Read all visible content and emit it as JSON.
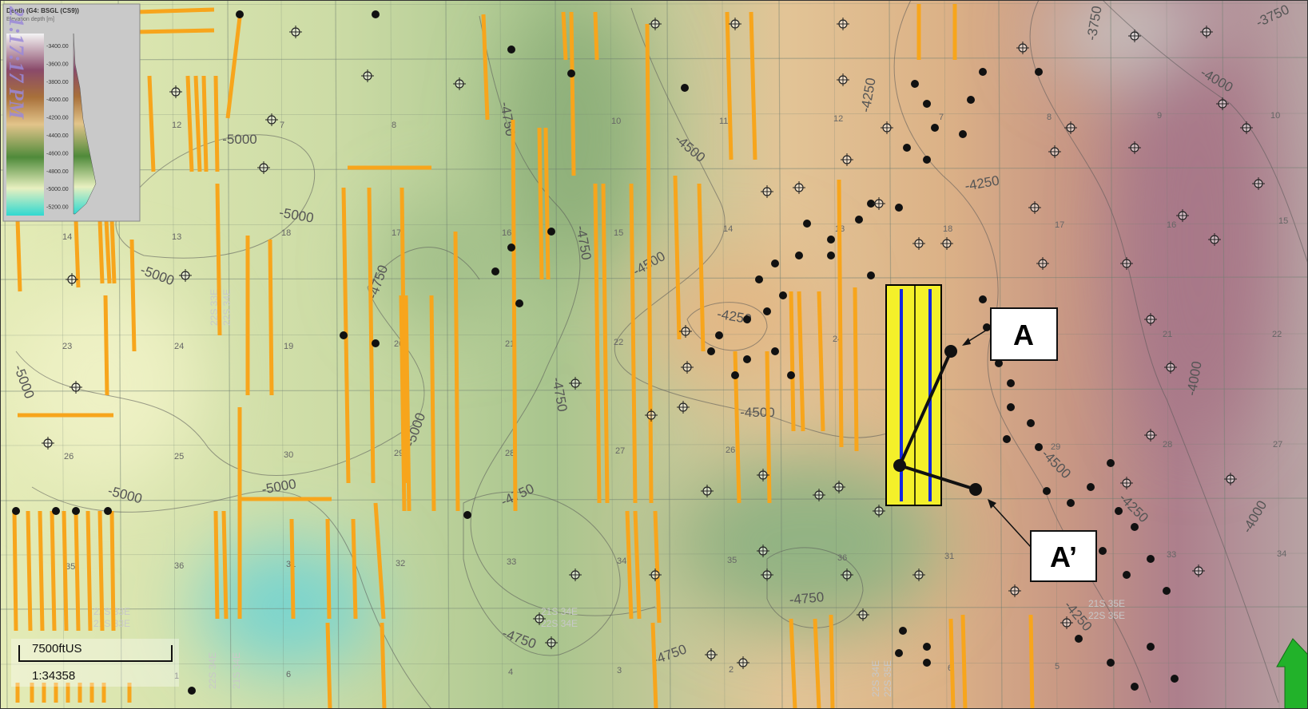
{
  "legend": {
    "title": "Depth (G4: BSGL (CS9))",
    "subtitle": "Elevation depth [m]",
    "ticks": [
      "-3400.00",
      "-3600.00",
      "-3800.00",
      "-4000.00",
      "-4200.00",
      "-4400.00",
      "-4600.00",
      "-4800.00",
      "-5000.00",
      "-5200.00"
    ]
  },
  "timestamp": "21:17:17 PM",
  "scale": {
    "distance": "7500ftUS",
    "ratio": "1:34358"
  },
  "cross_section": {
    "start": "A",
    "end": "A’"
  },
  "contour_labels": [
    "-5000",
    "-5000",
    "-5000",
    "-5000",
    "-5000",
    "-5000",
    "-5000",
    "-4750",
    "-4750",
    "-4750",
    "-4750",
    "-4750",
    "-4750",
    "-4750",
    "-4750",
    "-4500",
    "-4500",
    "-4500",
    "-4500",
    "-4250",
    "-4250",
    "-4250",
    "-4250",
    "-4250",
    "-4000",
    "-4000",
    "-4000",
    "-3750",
    "-3750"
  ],
  "section_numbers": [
    "12",
    "7",
    "8",
    "10",
    "11",
    "12",
    "7",
    "8",
    "9",
    "10",
    "14",
    "13",
    "18",
    "17",
    "16",
    "15",
    "14",
    "13",
    "18",
    "17",
    "16",
    "15",
    "23",
    "24",
    "19",
    "20",
    "21",
    "22",
    "24",
    "21",
    "22",
    "26",
    "25",
    "30",
    "29",
    "28",
    "27",
    "26",
    "29",
    "28",
    "27",
    "35",
    "36",
    "31",
    "32",
    "33",
    "34",
    "35",
    "36",
    "31",
    "33",
    "34",
    "1",
    "6",
    "4",
    "3",
    "2",
    "6",
    "5"
  ],
  "township_labels": [
    "22S 33E",
    "21S 33E",
    "22S 34E",
    "21S 34E",
    "22S 33E",
    "22S 34E",
    "21S 34E",
    "22S 34E",
    "21S 35E",
    "22S 35E",
    "22S 34E",
    "22S 35E"
  ]
}
